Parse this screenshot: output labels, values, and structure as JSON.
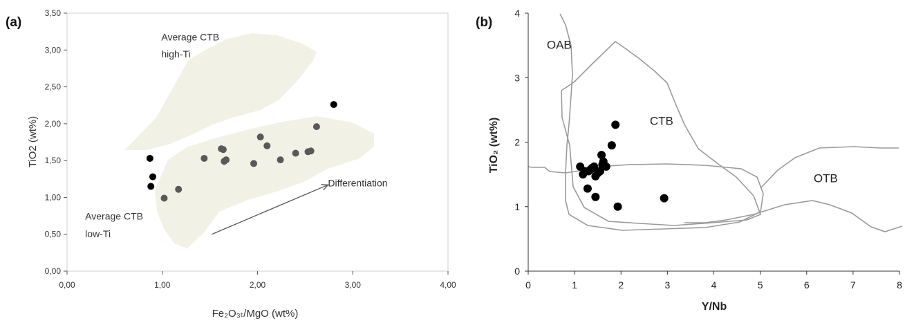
{
  "chart_data": [
    {
      "panel_label": "(a)",
      "type": "scatter",
      "xlabel": "Fe₂O₃ₜ/MgO (wt%)",
      "ylabel": "TiO2 (wt%)",
      "xlim": [
        0,
        4
      ],
      "ylim": [
        0,
        3.5
      ],
      "x_ticks": [
        "0,00",
        "1,00",
        "2,00",
        "3,00",
        "4,00"
      ],
      "y_ticks": [
        "0,00",
        "0,50",
        "1,00",
        "1,50",
        "2,00",
        "2,50",
        "3,00",
        "3,50"
      ],
      "grid": false,
      "points_black": [
        [
          0.87,
          1.53
        ],
        [
          0.88,
          1.15
        ],
        [
          0.9,
          1.28
        ],
        [
          2.8,
          2.26
        ]
      ],
      "points_gray": [
        [
          1.02,
          0.99
        ],
        [
          1.17,
          1.11
        ],
        [
          1.44,
          1.53
        ],
        [
          1.62,
          1.66
        ],
        [
          1.64,
          1.65
        ],
        [
          1.65,
          1.49
        ],
        [
          1.67,
          1.51
        ],
        [
          1.96,
          1.46
        ],
        [
          2.03,
          1.82
        ],
        [
          2.1,
          1.7
        ],
        [
          2.24,
          1.51
        ],
        [
          2.4,
          1.6
        ],
        [
          2.53,
          1.62
        ],
        [
          2.56,
          1.63
        ],
        [
          2.62,
          1.96
        ]
      ],
      "fields": [
        {
          "label": "Average CTB\nhigh-Ti",
          "fill": "#f1f1e6"
        },
        {
          "label": "Average CTB\nlow-Ti",
          "fill": "#f1f1e6"
        }
      ],
      "annotations": [
        {
          "text": "Average CTB",
          "x": 0.99,
          "y": 3.13
        },
        {
          "text": "high-Ti",
          "x": 0.99,
          "y": 2.9
        },
        {
          "text": "Average CTB",
          "x": 0.19,
          "y": 0.7
        },
        {
          "text": "low-Ti",
          "x": 0.19,
          "y": 0.46
        },
        {
          "text": "Differentiation",
          "x": 2.74,
          "y": 1.15
        }
      ],
      "arrow": {
        "from": [
          1.52,
          0.5
        ],
        "to": [
          2.74,
          1.17
        ]
      }
    },
    {
      "panel_label": "(b)",
      "type": "scatter",
      "xlabel": "Y/Nb",
      "ylabel": "TiO₂ (wt%)",
      "xlim": [
        0,
        8
      ],
      "ylim": [
        0,
        4
      ],
      "x_ticks": [
        "0",
        "1",
        "2",
        "3",
        "4",
        "5",
        "6",
        "7",
        "8"
      ],
      "y_ticks": [
        "0",
        "1",
        "2",
        "3",
        "4"
      ],
      "grid": false,
      "points": [
        [
          1.12,
          1.62
        ],
        [
          1.18,
          1.5
        ],
        [
          1.22,
          1.55
        ],
        [
          1.28,
          1.28
        ],
        [
          1.3,
          1.55
        ],
        [
          1.35,
          1.58
        ],
        [
          1.38,
          1.6
        ],
        [
          1.42,
          1.62
        ],
        [
          1.45,
          1.47
        ],
        [
          1.45,
          1.15
        ],
        [
          1.5,
          1.52
        ],
        [
          1.55,
          1.55
        ],
        [
          1.58,
          1.8
        ],
        [
          1.6,
          1.65
        ],
        [
          1.62,
          1.7
        ],
        [
          1.68,
          1.62
        ],
        [
          1.8,
          1.95
        ],
        [
          1.88,
          2.27
        ],
        [
          1.93,
          1.0
        ],
        [
          2.93,
          1.13
        ]
      ],
      "field_labels": [
        {
          "text": "OAB",
          "x": 0.4,
          "y": 3.45
        },
        {
          "text": "CTB",
          "x": 2.62,
          "y": 2.27
        },
        {
          "text": "OTB",
          "x": 6.15,
          "y": 1.38
        }
      ],
      "line_color": "#9a9a9a"
    }
  ]
}
